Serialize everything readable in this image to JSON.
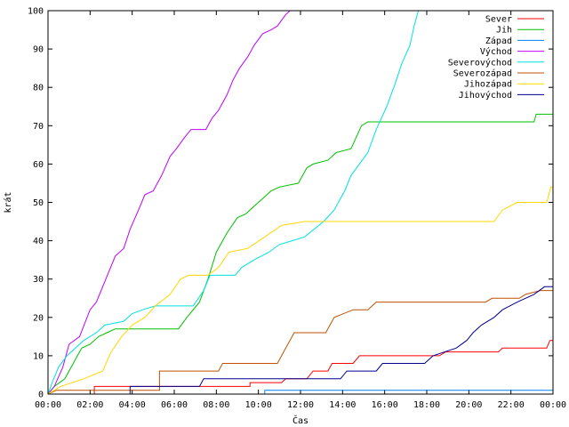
{
  "chart_data": {
    "type": "line",
    "title": "",
    "xlabel": "Čas",
    "ylabel": "krát",
    "xlim": [
      0,
      24
    ],
    "ylim": [
      0,
      100
    ],
    "x_ticks": [
      {
        "value": 0,
        "label": "00:00"
      },
      {
        "value": 2,
        "label": "02:00"
      },
      {
        "value": 4,
        "label": "04:00"
      },
      {
        "value": 6,
        "label": "06:00"
      },
      {
        "value": 8,
        "label": "08:00"
      },
      {
        "value": 10,
        "label": "10:00"
      },
      {
        "value": 12,
        "label": "12:00"
      },
      {
        "value": 14,
        "label": "14:00"
      },
      {
        "value": 16,
        "label": "16:00"
      },
      {
        "value": 18,
        "label": "18:00"
      },
      {
        "value": 20,
        "label": "20:00"
      },
      {
        "value": 22,
        "label": "22:00"
      },
      {
        "value": 24,
        "label": "00:00"
      }
    ],
    "y_ticks": [
      0,
      10,
      20,
      30,
      40,
      50,
      60,
      70,
      80,
      90,
      100
    ],
    "grid": false,
    "legend_position": "top-right",
    "series": [
      {
        "name": "Sever",
        "color": "#ff0000",
        "points": [
          [
            0,
            0
          ],
          [
            2.2,
            0
          ],
          [
            2.2,
            2
          ],
          [
            9.6,
            2
          ],
          [
            9.6,
            3
          ],
          [
            11.1,
            3
          ],
          [
            11.3,
            4
          ],
          [
            12.3,
            4
          ],
          [
            12.6,
            6
          ],
          [
            13.3,
            6
          ],
          [
            13.5,
            8
          ],
          [
            14.5,
            8
          ],
          [
            14.8,
            10
          ],
          [
            18.6,
            10
          ],
          [
            18.9,
            11
          ],
          [
            21.4,
            11
          ],
          [
            21.6,
            12
          ],
          [
            23.7,
            12
          ],
          [
            23.85,
            14
          ],
          [
            24,
            14
          ]
        ]
      },
      {
        "name": "Jih",
        "color": "#00c000",
        "points": [
          [
            0,
            0
          ],
          [
            0.3,
            2
          ],
          [
            0.8,
            4
          ],
          [
            1.2,
            8
          ],
          [
            1.4,
            10
          ],
          [
            1.6,
            12
          ],
          [
            2.0,
            13
          ],
          [
            2.4,
            15
          ],
          [
            2.8,
            16
          ],
          [
            3.2,
            17
          ],
          [
            6.2,
            17
          ],
          [
            6.6,
            20
          ],
          [
            7.2,
            24
          ],
          [
            7.6,
            30
          ],
          [
            8.0,
            37
          ],
          [
            8.5,
            42
          ],
          [
            9.0,
            46
          ],
          [
            9.4,
            47
          ],
          [
            9.8,
            49
          ],
          [
            10.2,
            51
          ],
          [
            10.6,
            53
          ],
          [
            11.0,
            54
          ],
          [
            11.9,
            55
          ],
          [
            12.3,
            59
          ],
          [
            12.6,
            60
          ],
          [
            13.3,
            61
          ],
          [
            13.7,
            63
          ],
          [
            14.4,
            64
          ],
          [
            14.9,
            70
          ],
          [
            15.2,
            71
          ],
          [
            23.1,
            71
          ],
          [
            23.2,
            73
          ],
          [
            24,
            73
          ]
        ]
      },
      {
        "name": "Západ",
        "color": "#0080ff",
        "points": [
          [
            0,
            0
          ],
          [
            10.3,
            0
          ],
          [
            10.3,
            1
          ],
          [
            24,
            1
          ]
        ]
      },
      {
        "name": "Východ",
        "color": "#c000ff",
        "points": [
          [
            0,
            0
          ],
          [
            0.3,
            2
          ],
          [
            0.7,
            7
          ],
          [
            1.0,
            13
          ],
          [
            1.5,
            15
          ],
          [
            2.0,
            22
          ],
          [
            2.3,
            24
          ],
          [
            2.6,
            28
          ],
          [
            2.9,
            32
          ],
          [
            3.2,
            36
          ],
          [
            3.6,
            38
          ],
          [
            3.9,
            43
          ],
          [
            4.3,
            48
          ],
          [
            4.6,
            52
          ],
          [
            5.0,
            53
          ],
          [
            5.4,
            57
          ],
          [
            5.8,
            62
          ],
          [
            6.1,
            64
          ],
          [
            6.5,
            67
          ],
          [
            6.8,
            69
          ],
          [
            7.5,
            69
          ],
          [
            7.8,
            72
          ],
          [
            8.1,
            74
          ],
          [
            8.5,
            78
          ],
          [
            8.8,
            82
          ],
          [
            9.1,
            85
          ],
          [
            9.5,
            88
          ],
          [
            9.8,
            91
          ],
          [
            10.2,
            94
          ],
          [
            10.6,
            95
          ],
          [
            10.9,
            96
          ],
          [
            11.3,
            99
          ],
          [
            11.5,
            100
          ]
        ]
      },
      {
        "name": "Severovýchod",
        "color": "#00e0e0",
        "points": [
          [
            0,
            0
          ],
          [
            0.2,
            3
          ],
          [
            0.5,
            7
          ],
          [
            0.9,
            10
          ],
          [
            1.3,
            12
          ],
          [
            1.7,
            14
          ],
          [
            2.3,
            16
          ],
          [
            2.7,
            18
          ],
          [
            3.6,
            19
          ],
          [
            4.0,
            21
          ],
          [
            4.5,
            22
          ],
          [
            5.1,
            23
          ],
          [
            6.9,
            23
          ],
          [
            7.4,
            27
          ],
          [
            7.7,
            31
          ],
          [
            8.9,
            31
          ],
          [
            9.2,
            33
          ],
          [
            9.8,
            35
          ],
          [
            10.5,
            37
          ],
          [
            11.0,
            39
          ],
          [
            11.6,
            40
          ],
          [
            12.2,
            41
          ],
          [
            13.1,
            45
          ],
          [
            13.6,
            48
          ],
          [
            14.1,
            53
          ],
          [
            14.4,
            57
          ],
          [
            14.8,
            60
          ],
          [
            15.2,
            63
          ],
          [
            15.6,
            69
          ],
          [
            16.1,
            75
          ],
          [
            16.5,
            81
          ],
          [
            16.8,
            86
          ],
          [
            17.2,
            91
          ],
          [
            17.4,
            96
          ],
          [
            17.6,
            100
          ]
        ]
      },
      {
        "name": "Severozápad",
        "color": "#c05000",
        "points": [
          [
            0,
            0
          ],
          [
            0.4,
            1
          ],
          [
            5.3,
            1
          ],
          [
            5.3,
            6
          ],
          [
            8.1,
            6
          ],
          [
            8.3,
            8
          ],
          [
            10.9,
            8
          ],
          [
            11.3,
            12
          ],
          [
            11.7,
            16
          ],
          [
            13.2,
            16
          ],
          [
            13.6,
            20
          ],
          [
            14.5,
            22
          ],
          [
            15.2,
            22
          ],
          [
            15.6,
            24
          ],
          [
            20.8,
            24
          ],
          [
            21.1,
            25
          ],
          [
            22.4,
            25
          ],
          [
            22.7,
            26
          ],
          [
            23.4,
            27
          ],
          [
            24,
            27
          ]
        ]
      },
      {
        "name": "Jihozápad",
        "color": "#ffd700",
        "points": [
          [
            0,
            0
          ],
          [
            0.6,
            2
          ],
          [
            1.7,
            4
          ],
          [
            2.6,
            6
          ],
          [
            3.0,
            11
          ],
          [
            3.5,
            15
          ],
          [
            4.0,
            18
          ],
          [
            4.6,
            20
          ],
          [
            5.1,
            23
          ],
          [
            5.8,
            26
          ],
          [
            6.3,
            30
          ],
          [
            6.7,
            31
          ],
          [
            7.6,
            31
          ],
          [
            8.1,
            33
          ],
          [
            8.6,
            37
          ],
          [
            9.5,
            38
          ],
          [
            10.3,
            41
          ],
          [
            11.1,
            44
          ],
          [
            12.2,
            45
          ],
          [
            21.2,
            45
          ],
          [
            21.6,
            48
          ],
          [
            22.3,
            50
          ],
          [
            23.7,
            50
          ],
          [
            23.9,
            54
          ],
          [
            24,
            54
          ]
        ]
      },
      {
        "name": "Jihovýchod",
        "color": "#000090",
        "points": [
          [
            0,
            0
          ],
          [
            3.9,
            0
          ],
          [
            3.9,
            2
          ],
          [
            7.2,
            2
          ],
          [
            7.4,
            4
          ],
          [
            13.9,
            4
          ],
          [
            14.2,
            6
          ],
          [
            15.6,
            6
          ],
          [
            15.9,
            8
          ],
          [
            17.9,
            8
          ],
          [
            18.3,
            10
          ],
          [
            19.4,
            12
          ],
          [
            19.9,
            14
          ],
          [
            20.2,
            16
          ],
          [
            20.6,
            18
          ],
          [
            21.2,
            20
          ],
          [
            21.6,
            22
          ],
          [
            22.3,
            24
          ],
          [
            23.1,
            26
          ],
          [
            23.6,
            28
          ],
          [
            24,
            28
          ]
        ]
      }
    ]
  }
}
